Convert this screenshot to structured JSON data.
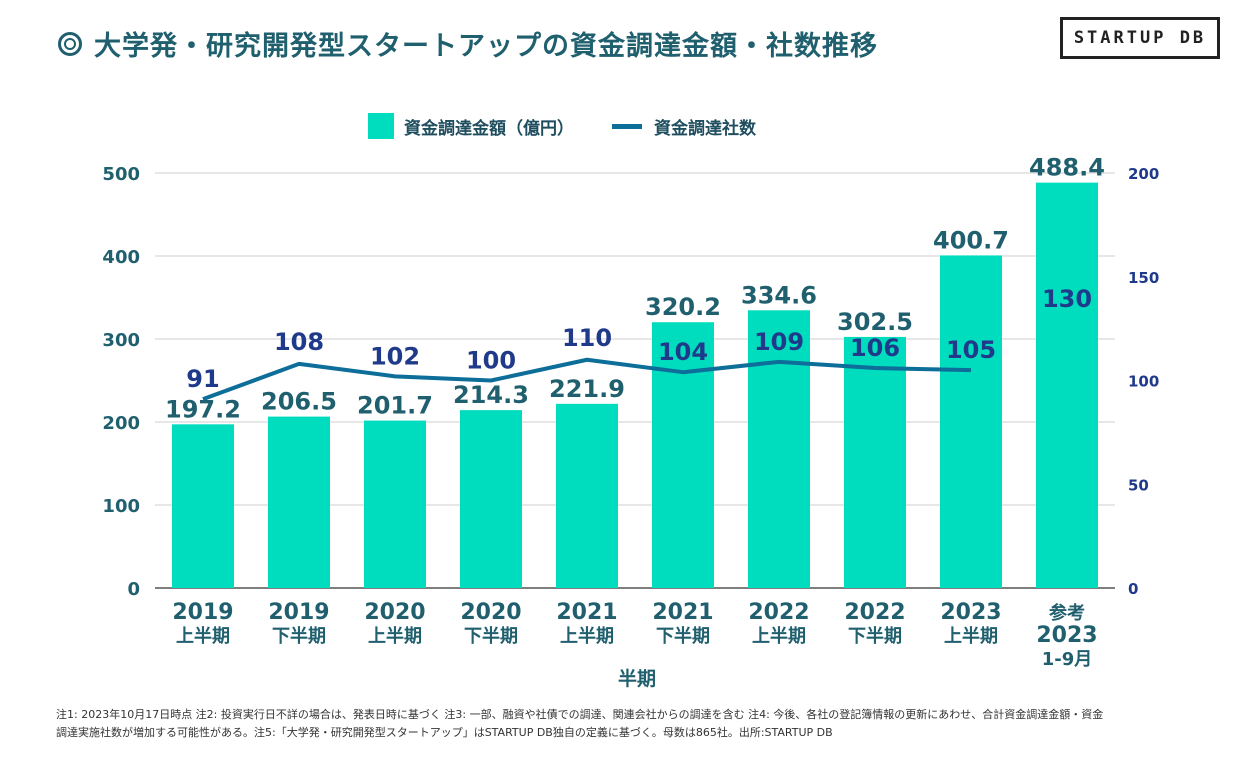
{
  "header": {
    "title": "大学発・研究開発型スタートアップの資金調達金額・社数推移",
    "icon": "target-icon",
    "logo_text": "STARTUP DB"
  },
  "colors": {
    "bar": "#00dcbe",
    "line": "#0d6e9a",
    "text": "#1f5f6e"
  },
  "chart_data": {
    "type": "bar",
    "title": "",
    "xlabel": "半期",
    "categories": [
      [
        "2019",
        "上半期"
      ],
      [
        "2019",
        "下半期"
      ],
      [
        "2020",
        "上半期"
      ],
      [
        "2020",
        "下半期"
      ],
      [
        "2021",
        "上半期"
      ],
      [
        "2021",
        "下半期"
      ],
      [
        "2022",
        "上半期"
      ],
      [
        "2022",
        "下半期"
      ],
      [
        "2023",
        "上半期"
      ],
      [
        "参考",
        "2023",
        "1-9月"
      ]
    ],
    "left_axis": {
      "ylim": [
        0,
        500
      ],
      "ticks": [
        0,
        100,
        200,
        300,
        400,
        500
      ]
    },
    "right_axis": {
      "ylim": [
        0,
        200
      ],
      "ticks": [
        0,
        50,
        100,
        150,
        200
      ]
    },
    "series": [
      {
        "name": "資金調達金額（億円）",
        "type": "bar",
        "axis": "left",
        "values": [
          197.2,
          206.5,
          201.7,
          214.3,
          221.9,
          320.2,
          334.6,
          302.5,
          400.7,
          488.4
        ],
        "labels": [
          "197.2",
          "206.5",
          "201.7",
          "214.3",
          "221.9",
          "320.2",
          "334.6",
          "302.5",
          "400.7",
          "488.4"
        ]
      },
      {
        "name": "資金調達社数",
        "type": "line",
        "axis": "right",
        "values": [
          91,
          108,
          102,
          100,
          110,
          104,
          109,
          106,
          105,
          130
        ],
        "labels": [
          "91",
          "108",
          "102",
          "100",
          "110",
          "104",
          "109",
          "106",
          "105",
          "130"
        ],
        "line_point_count": 9
      }
    ],
    "legend_position": "top-center",
    "grid": true
  },
  "notes": [
    "注1: 2023年10月17日時点 注2: 投資実行日不詳の場合は、発表日時に基づく 注3: 一部、融資や社債での調達、関連会社からの調達を含む 注4: 今後、各社の登記簿情報の更新にあわせ、合計資金調達金額・資金",
    "調達実施社数が増加する可能性がある。注5:「大学発・研究開発型スタートアップ」はSTARTUP DB独自の定義に基づく。母数は865社。出所:STARTUP DB"
  ]
}
